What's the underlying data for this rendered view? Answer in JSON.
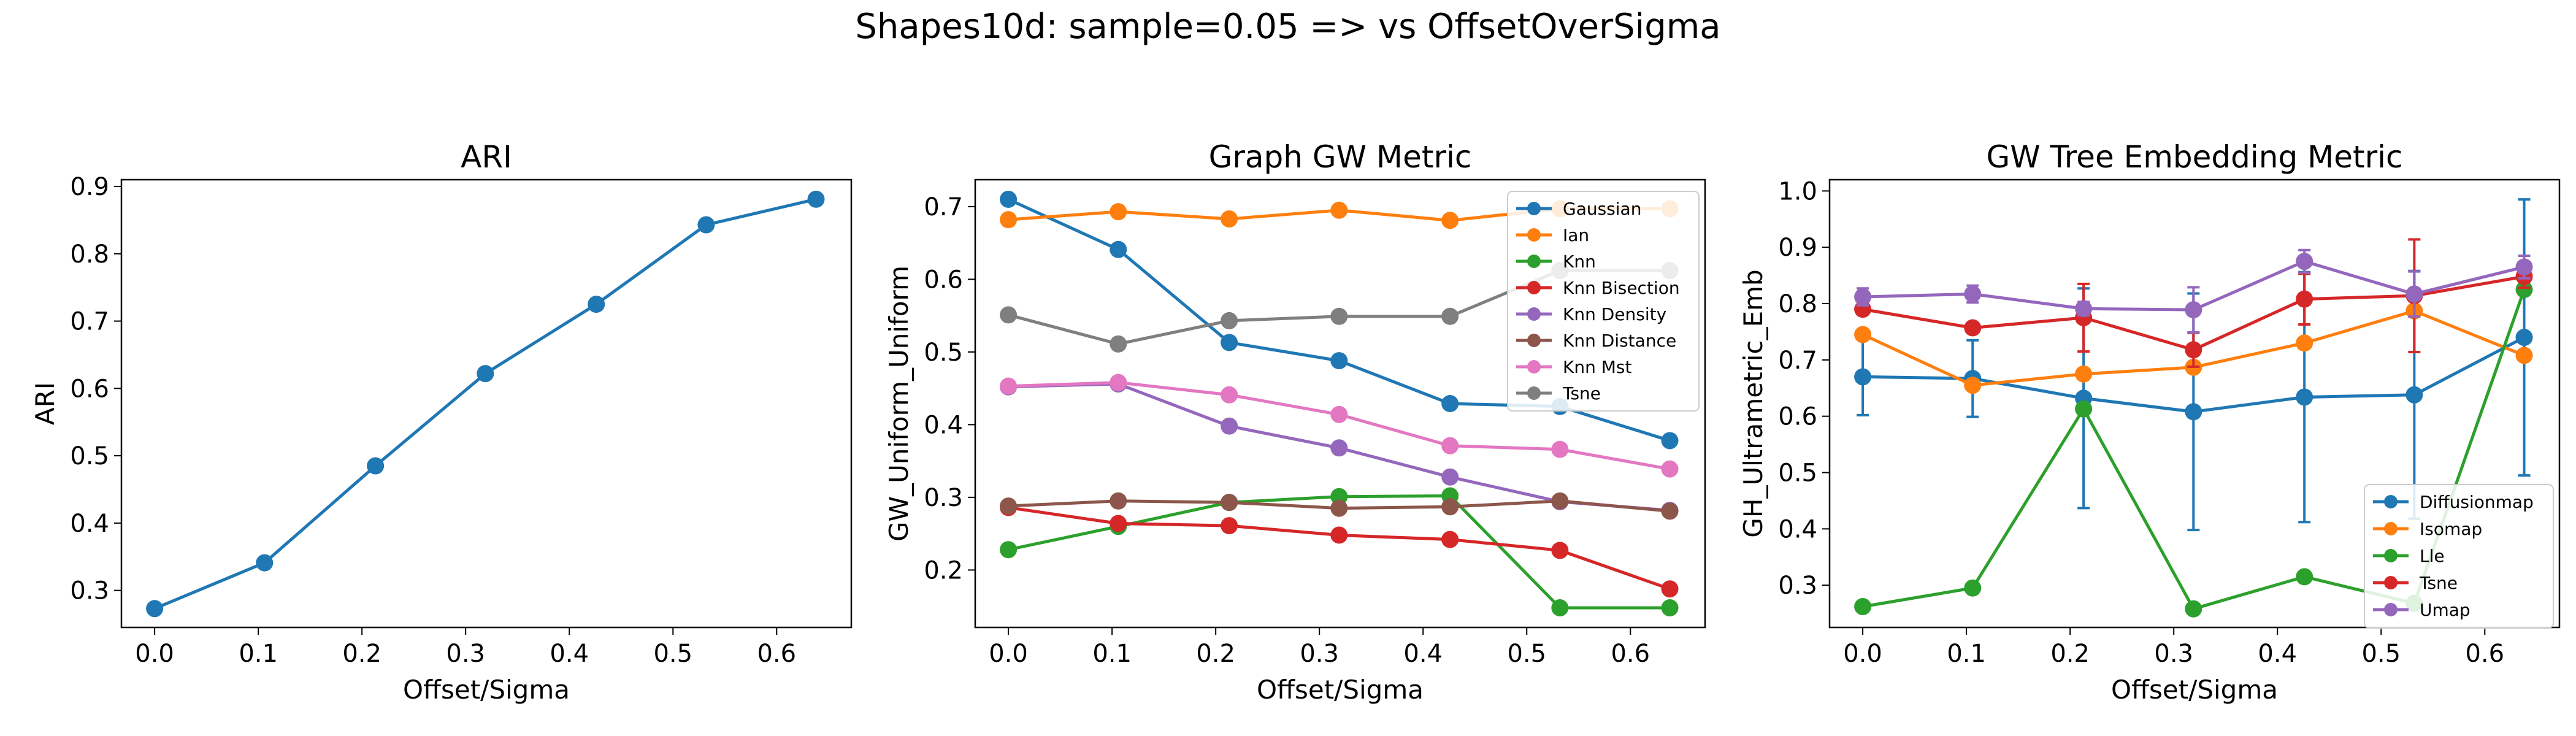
{
  "figure": {
    "title": "Shapes10d: sample=0.05 => vs OffsetOverSigma"
  },
  "chart_data": [
    {
      "type": "line",
      "title": "ARI",
      "xlabel": "Offset/Sigma",
      "ylabel": "ARI",
      "xlim": [
        -0.032,
        0.672
      ],
      "ylim": [
        0.245,
        0.91
      ],
      "xticks": [
        0.0,
        0.1,
        0.2,
        0.3,
        0.4,
        0.5,
        0.6
      ],
      "yticks": [
        0.3,
        0.4,
        0.5,
        0.6,
        0.7,
        0.8,
        0.9
      ],
      "x": [
        0.0,
        0.106,
        0.213,
        0.319,
        0.426,
        0.532,
        0.638
      ],
      "series": [
        {
          "values": [
            0.273,
            0.341,
            0.485,
            0.622,
            0.725,
            0.843,
            0.881
          ],
          "color": "#1f77b4"
        }
      ]
    },
    {
      "type": "line",
      "title": "Graph GW Metric",
      "xlabel": "Offset/Sigma",
      "ylabel": "GW_Uniform_Uniform",
      "xlim": [
        -0.032,
        0.672
      ],
      "ylim": [
        0.121,
        0.737
      ],
      "xticks": [
        0.0,
        0.1,
        0.2,
        0.3,
        0.4,
        0.5,
        0.6
      ],
      "yticks": [
        0.2,
        0.3,
        0.4,
        0.5,
        0.6,
        0.7
      ],
      "x": [
        0.0,
        0.106,
        0.213,
        0.319,
        0.426,
        0.532,
        0.638
      ],
      "legend": "top-right",
      "series": [
        {
          "name": "Gaussian",
          "color": "#1f77b4",
          "values": [
            0.71,
            0.641,
            0.513,
            0.488,
            0.429,
            0.425,
            0.378
          ]
        },
        {
          "name": "Ian",
          "color": "#ff7f0e",
          "values": [
            0.682,
            0.693,
            0.683,
            0.695,
            0.681,
            0.697,
            0.697
          ]
        },
        {
          "name": "Knn",
          "color": "#2ca02c",
          "values": [
            0.228,
            0.26,
            0.293,
            0.301,
            0.302,
            0.148,
            0.148
          ]
        },
        {
          "name": "Knn Bisection",
          "color": "#d62728",
          "values": [
            0.286,
            0.264,
            0.261,
            0.248,
            0.242,
            0.227,
            0.174
          ]
        },
        {
          "name": "Knn Density",
          "color": "#9467bd",
          "values": [
            0.452,
            0.456,
            0.398,
            0.368,
            0.328,
            0.294,
            0.282
          ]
        },
        {
          "name": "Knn Distance",
          "color": "#8c564b",
          "values": [
            0.288,
            0.295,
            0.293,
            0.285,
            0.287,
            0.295,
            0.281
          ]
        },
        {
          "name": "Knn Mst",
          "color": "#e377c2",
          "values": [
            0.453,
            0.458,
            0.441,
            0.414,
            0.371,
            0.366,
            0.339
          ]
        },
        {
          "name": "Tsne",
          "color": "#7f7f7f",
          "values": [
            0.551,
            0.511,
            0.543,
            0.549,
            0.549,
            0.612,
            0.612
          ]
        }
      ]
    },
    {
      "type": "line",
      "title": "GW Tree Embedding Metric",
      "xlabel": "Offset/Sigma",
      "ylabel": "GH_Ultrametric_Emb",
      "xlim": [
        -0.032,
        0.672
      ],
      "ylim": [
        0.225,
        1.02
      ],
      "xticks": [
        0.0,
        0.1,
        0.2,
        0.3,
        0.4,
        0.5,
        0.6
      ],
      "yticks": [
        0.3,
        0.4,
        0.5,
        0.6,
        0.7,
        0.8,
        0.9,
        1.0
      ],
      "x": [
        0.0,
        0.106,
        0.213,
        0.319,
        0.426,
        0.532,
        0.638
      ],
      "legend": "lower-right",
      "series": [
        {
          "name": "Diffusionmap",
          "color": "#1f77b4",
          "values": [
            0.67,
            0.667,
            0.632,
            0.608,
            0.634,
            0.638,
            0.74
          ],
          "errors": [
            0.068,
            0.068,
            0.195,
            0.21,
            0.222,
            0.22,
            0.245
          ]
        },
        {
          "name": "Isomap",
          "color": "#ff7f0e",
          "values": [
            0.745,
            0.655,
            0.675,
            0.687,
            0.73,
            0.787,
            0.708
          ],
          "errors": [
            0,
            0,
            0,
            0,
            0,
            0,
            0
          ]
        },
        {
          "name": "Lle",
          "color": "#2ca02c",
          "values": [
            0.262,
            0.295,
            0.613,
            0.258,
            0.315,
            0.268,
            0.825
          ],
          "errors": [
            0,
            0,
            0,
            0,
            0,
            0,
            0
          ]
        },
        {
          "name": "Tsne",
          "color": "#d62728",
          "values": [
            0.79,
            0.757,
            0.775,
            0.718,
            0.808,
            0.814,
            0.848
          ],
          "errors": [
            0,
            0,
            0.06,
            0.03,
            0.045,
            0.1,
            0.02
          ]
        },
        {
          "name": "Umap",
          "color": "#9467bd",
          "values": [
            0.812,
            0.817,
            0.791,
            0.789,
            0.875,
            0.817,
            0.865
          ],
          "errors": [
            0.015,
            0.015,
            0.012,
            0.04,
            0.02,
            0.04,
            0.02
          ]
        }
      ]
    }
  ]
}
